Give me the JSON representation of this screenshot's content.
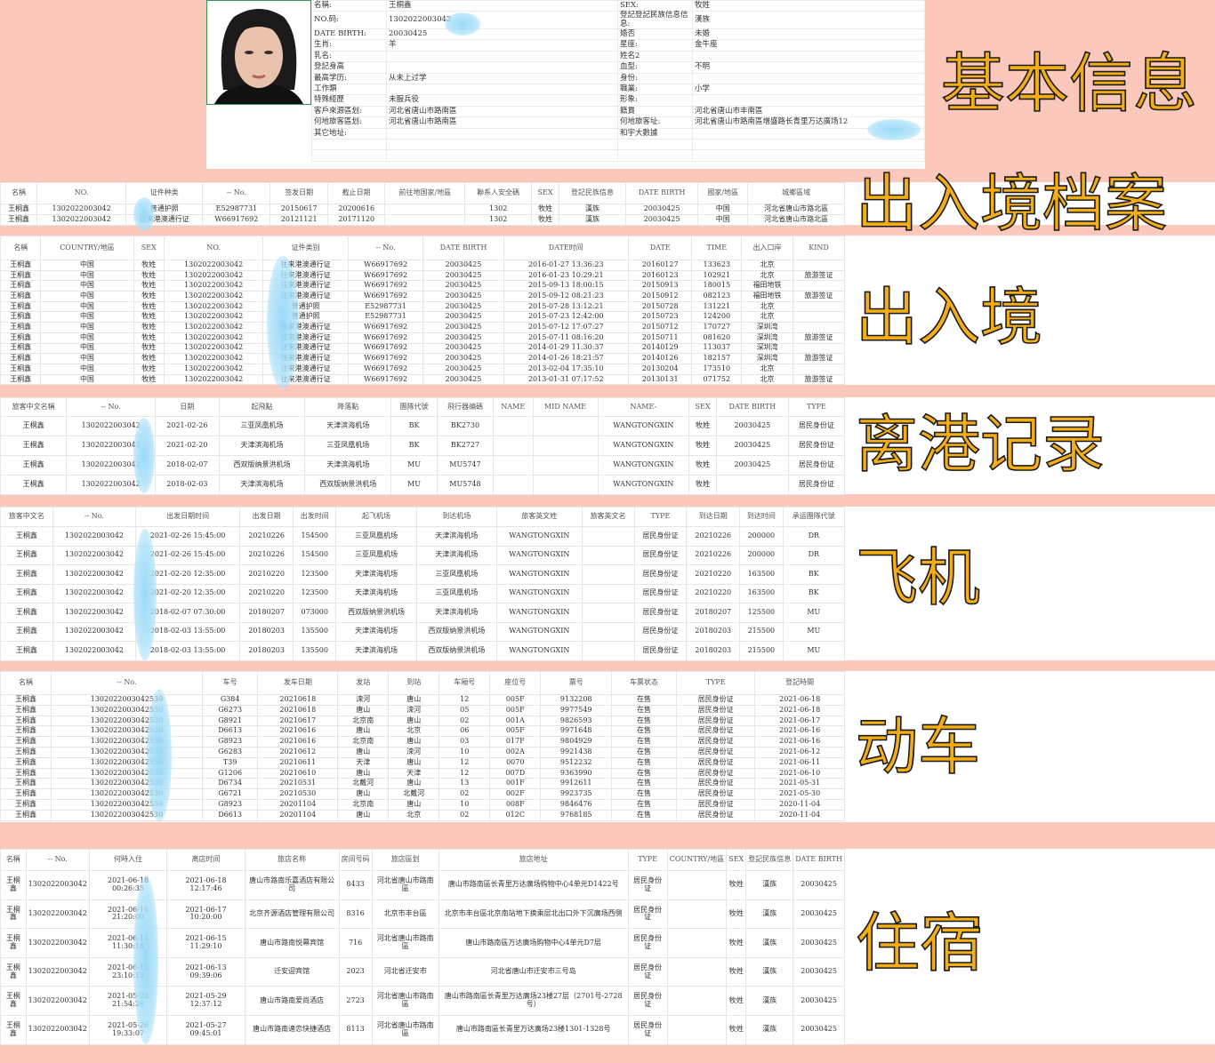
{
  "labels": {
    "basic": "基本信息",
    "archive": "出入境档案",
    "entry": "出入境",
    "depart": "离港记录",
    "flight": "飞机",
    "train": "动车",
    "hotel": "住宿"
  },
  "colors": {
    "background": "#fcc8bb",
    "label_fill": "#f3ae17",
    "label_outline": "#1a1a1a",
    "redaction": "#9fd8f3"
  },
  "basic": {
    "photo_icon": "person-photo",
    "rows": [
      [
        "名稱:",
        "王桐鑫",
        "SEX:",
        "牧姓"
      ],
      [
        "NO.码:",
        "1302022003042",
        "登記登記民族信息信息:",
        "漢族"
      ],
      [
        "DATE BIRTH:",
        "20030425",
        "婚否",
        "未婚"
      ],
      [
        "生肖:",
        "羊",
        "星座:",
        "金牛座"
      ],
      [
        "乳名:",
        "",
        "姓名2",
        ""
      ],
      [
        "登記身高",
        "",
        "血型:",
        "不明"
      ],
      [
        "最高学历:",
        "从未上过学",
        "身份:",
        ""
      ],
      [
        "工作類",
        "",
        "職業:",
        "小学"
      ],
      [
        "特殊經歷",
        "未服兵役",
        "形象:",
        ""
      ],
      [
        "客戶來源區划:",
        "河北省唐山市路南區",
        "籍貫",
        "河北省唐山市丰南區"
      ],
      [
        "何地旅客區划:",
        "河北省唐山市路南區",
        "何地旅客址:",
        "河北省唐山市路南區增盛路长青里万达廣场12"
      ],
      [
        "其它地址:",
        "",
        "和宇大數據",
        ""
      ],
      [
        "",
        "",
        "",
        ""
      ],
      [
        "",
        "",
        "",
        ""
      ]
    ]
  },
  "tables": {
    "archive": {
      "headers": [
        "名稱",
        "NO.",
        "证件种类",
        "-- No.",
        "签发日期",
        "截止日期",
        "前往地国家/地區",
        "聯系人安全碼",
        "SEX",
        "登記民族信息",
        "DATE BIRTH",
        "國家/地區",
        "城鄉區域"
      ],
      "rows": [
        [
          "王桐鑫",
          "1302022003042",
          "普通护照",
          "E52987731",
          "20150617",
          "20200616",
          "",
          "1302",
          "牧姓",
          "漢族",
          "20030425",
          "中国",
          "河北省唐山市路北區"
        ],
        [
          "王桐鑫",
          "1302022003042",
          "往来港澳通行证",
          "W66917692",
          "20121121",
          "20171120",
          "",
          "1302",
          "牧姓",
          "漢族",
          "20030425",
          "中国",
          "河北省唐山市路北區"
        ]
      ]
    },
    "entry": {
      "headers": [
        "名稱",
        "COUNTRY/地區",
        "SEX",
        "NO.",
        "证件类别",
        "-- No.",
        "DATE BIRTH",
        "DATE时间",
        "DATE",
        "TIME",
        "出入口岸",
        "KIND"
      ],
      "rows": [
        [
          "王桐鑫",
          "中国",
          "牧姓",
          "1302022003042",
          "往来港澳通行证",
          "W66917692",
          "20030425",
          "2016-01-27 13:36:23",
          "20160127",
          "133623",
          "北京",
          ""
        ],
        [
          "王桐鑫",
          "中国",
          "牧姓",
          "1302022003042",
          "往来港澳通行证",
          "W66917692",
          "20030425",
          "2016-01-23 10:29:21",
          "20160123",
          "102921",
          "北京",
          "旅游签证"
        ],
        [
          "王桐鑫",
          "中国",
          "牧姓",
          "1302022003042",
          "往来港澳通行证",
          "W66917692",
          "20030425",
          "2015-09-13 18:00:15",
          "20150913",
          "180015",
          "福田地铁",
          ""
        ],
        [
          "王桐鑫",
          "中国",
          "牧姓",
          "1302022003042",
          "往来港澳通行证",
          "W66917692",
          "20030425",
          "2015-09-12 08:21:23",
          "20150912",
          "082123",
          "福田地铁",
          "旅游签证"
        ],
        [
          "王桐鑫",
          "中国",
          "牧姓",
          "1302022003042",
          "普通护照",
          "E52987731",
          "20030425",
          "2015-07-28 13:12:21",
          "20150728",
          "131221",
          "北京",
          ""
        ],
        [
          "王桐鑫",
          "中国",
          "牧姓",
          "1302022003042",
          "普通护照",
          "E52987731",
          "20030425",
          "2015-07-23 12:42:00",
          "20150723",
          "124200",
          "北京",
          ""
        ],
        [
          "王桐鑫",
          "中国",
          "牧姓",
          "1302022003042",
          "往来港澳通行证",
          "W66917692",
          "20030425",
          "2015-07-12 17:07:27",
          "20150712",
          "170727",
          "深圳湾",
          ""
        ],
        [
          "王桐鑫",
          "中国",
          "牧姓",
          "1302022003042",
          "往来港澳通行证",
          "W66917692",
          "20030425",
          "2015-07-11 08:16:20",
          "20150711",
          "081620",
          "深圳湾",
          "旅游签证"
        ],
        [
          "王桐鑫",
          "中国",
          "牧姓",
          "1302022003042",
          "往来港澳通行证",
          "W66917692",
          "20030425",
          "2014-01-29 11:30:37",
          "20140129",
          "113037",
          "深圳湾",
          ""
        ],
        [
          "王桐鑫",
          "中国",
          "牧姓",
          "1302022003042",
          "往来港澳通行证",
          "W66917692",
          "20030425",
          "2014-01-26 18:21:57",
          "20140126",
          "182157",
          "深圳湾",
          "旅游签证"
        ],
        [
          "王桐鑫",
          "中国",
          "牧姓",
          "1302022003042",
          "往来港澳通行证",
          "W66917692",
          "20030425",
          "2013-02-04 17:35:10",
          "20130204",
          "173510",
          "北京",
          ""
        ],
        [
          "王桐鑫",
          "中国",
          "牧姓",
          "1302022003042",
          "往来港澳通行证",
          "W66917692",
          "20030425",
          "2013-01-31 07:17:52",
          "20130131",
          "071752",
          "北京",
          "旅游签证"
        ]
      ]
    },
    "depart": {
      "headers": [
        "旅客中文名稱",
        "-- No.",
        "日期",
        "起飛點",
        "降落點",
        "團隊代號",
        "飛行器编碼",
        "NAME",
        "MID NAME",
        "NAME-",
        "SEX",
        "DATE BIRTH",
        "TYPE"
      ],
      "rows": [
        [
          "王桐鑫",
          "1302022003042",
          "2021-02-26",
          "三亚凤凰机场",
          "天津滨海机场",
          "BK",
          "BK2730",
          "",
          "",
          "WANGTONGXIN",
          "牧姓",
          "20030425",
          "居民身份证"
        ],
        [
          "王桐鑫",
          "1302022003042",
          "2021-02-20",
          "天津滨海机场",
          "三亚凤凰机场",
          "BK",
          "BK2727",
          "",
          "",
          "WANGTONGXIN",
          "牧姓",
          "20030425",
          "居民身份证"
        ],
        [
          "王桐鑫",
          "1302022003042",
          "2018-02-07",
          "西双版纳景洪机场",
          "天津滨海机场",
          "MU",
          "MU5747",
          "",
          "",
          "WANGTONGXIN",
          "牧姓",
          "20030425",
          "居民身份证"
        ],
        [
          "王桐鑫",
          "1302022003042",
          "2018-02-03",
          "天津滨海机场",
          "西双版纳景洪机场",
          "MU",
          "MU5748",
          "",
          "",
          "WANGTONGXIN",
          "牧姓",
          "",
          "居民身份证"
        ]
      ]
    },
    "flight": {
      "headers": [
        "旅客中文名",
        "-- No.",
        "出发日期时间",
        "出发日期",
        "出发时间",
        "起飞机场",
        "到达机场",
        "旅客英文姓",
        "旅客英文名",
        "TYPE",
        "到达日期",
        "到达时间",
        "承运團隊代號"
      ],
      "rows": [
        [
          "王桐鑫",
          "1302022003042",
          "2021-02-26 15:45:00",
          "20210226",
          "154500",
          "三亚凤凰机场",
          "天津滨海机场",
          "WANGTONGXIN",
          "",
          "居民身份证",
          "20210226",
          "200000",
          "DR"
        ],
        [
          "王桐鑫",
          "1302022003042",
          "2021-02-26 15:45:00",
          "20210226",
          "154500",
          "三亚凤凰机场",
          "天津滨海机场",
          "WANGTONGXIN",
          "",
          "居民身份证",
          "20210226",
          "200000",
          "DR"
        ],
        [
          "王桐鑫",
          "1302022003042",
          "2021-02-20 12:35:00",
          "20210220",
          "123500",
          "天津滨海机场",
          "三亚凤凰机场",
          "WANGTONGXIN",
          "",
          "居民身份证",
          "20210220",
          "163500",
          "BK"
        ],
        [
          "王桐鑫",
          "1302022003042",
          "2021-02-20 12:35:00",
          "20210220",
          "123500",
          "天津滨海机场",
          "三亚凤凰机场",
          "WANGTONGXIN",
          "",
          "居民身份证",
          "20210220",
          "163500",
          "BK"
        ],
        [
          "王桐鑫",
          "1302022003042",
          "2018-02-07 07:30:00",
          "20180207",
          "073000",
          "西双版纳景洪机场",
          "天津滨海机场",
          "WANGTONGXIN",
          "",
          "居民身份证",
          "20180207",
          "125500",
          "MU"
        ],
        [
          "王桐鑫",
          "1302022003042",
          "2018-02-03 13:55:00",
          "20180203",
          "135500",
          "天津滨海机场",
          "西双版纳景洪机场",
          "WANGTONGXIN",
          "",
          "居民身份证",
          "20180203",
          "215500",
          "MU"
        ],
        [
          "王桐鑫",
          "1302022003042",
          "2018-02-03 13:55:00",
          "20180203",
          "135500",
          "天津滨海机场",
          "西双版纳景洪机场",
          "WANGTONGXIN",
          "",
          "居民身份证",
          "20180203",
          "215500",
          "MU"
        ]
      ]
    },
    "train": {
      "headers": [
        "名稱",
        "-- No.",
        "车号",
        "发车日期",
        "发站",
        "到站",
        "车厢号",
        "座位号",
        "票号",
        "车票状态",
        "TYPE",
        "登記時間"
      ],
      "rows": [
        [
          "王桐鑫",
          "1302022003042530",
          "G384",
          "20210618",
          "滦河",
          "唐山",
          "12",
          "005F",
          "9132208",
          "在售",
          "居民身份证",
          "2021-06-18"
        ],
        [
          "王桐鑫",
          "1302022003042530",
          "G6273",
          "20210618",
          "唐山",
          "滦河",
          "05",
          "005F",
          "9977549",
          "在售",
          "居民身份证",
          "2021-06-18"
        ],
        [
          "王桐鑫",
          "1302022003042530",
          "G8921",
          "20210617",
          "北京南",
          "唐山",
          "02",
          "001A",
          "9826593",
          "在售",
          "居民身份证",
          "2021-06-17"
        ],
        [
          "王桐鑫",
          "1302022003042530",
          "D6613",
          "20210616",
          "唐山",
          "北京",
          "06",
          "005F",
          "9971648",
          "在售",
          "居民身份证",
          "2021-06-16"
        ],
        [
          "王桐鑫",
          "1302022003042530",
          "G8923",
          "20210616",
          "北京南",
          "唐山",
          "03",
          "017F",
          "9804929",
          "在售",
          "居民身份证",
          "2021-06-16"
        ],
        [
          "王桐鑫",
          "1302022003042530",
          "G6283",
          "20210612",
          "唐山",
          "滦河",
          "10",
          "002A",
          "9921438",
          "在售",
          "居民身份证",
          "2021-06-12"
        ],
        [
          "王桐鑫",
          "1302022003042530",
          "T39",
          "20210611",
          "天津",
          "唐山",
          "12",
          "0070",
          "9512232",
          "在售",
          "居民身份证",
          "2021-06-11"
        ],
        [
          "王桐鑫",
          "1302022003042530",
          "G1206",
          "20210610",
          "唐山",
          "天津",
          "12",
          "007D",
          "9363990",
          "在售",
          "居民身份证",
          "2021-06-10"
        ],
        [
          "王桐鑫",
          "1302022003042530",
          "D6734",
          "20210531",
          "北戴河",
          "唐山",
          "13",
          "001F",
          "9912611",
          "在售",
          "居民身份证",
          "2021-05-31"
        ],
        [
          "王桐鑫",
          "1302022003042530",
          "G6721",
          "20210530",
          "唐山",
          "北戴河",
          "02",
          "002F",
          "9923735",
          "在售",
          "居民身份证",
          "2021-05-30"
        ],
        [
          "王桐鑫",
          "1302022003042530",
          "G8923",
          "20201104",
          "北京南",
          "唐山",
          "10",
          "008F",
          "9846476",
          "在售",
          "居民身份证",
          "2020-11-04"
        ],
        [
          "王桐鑫",
          "1302022003042530",
          "D6613",
          "20201104",
          "唐山",
          "北京",
          "02",
          "012C",
          "9768185",
          "在售",
          "居民身份证",
          "2020-11-04"
        ]
      ]
    },
    "hotel": {
      "headers": [
        "名稱",
        "-- No.",
        "何時入住",
        "离店时间",
        "旅店名称",
        "房间号码",
        "旅店區划",
        "旅店地址",
        "TYPE",
        "COUNTRY/地區",
        "SEX",
        "登記民族信息",
        "DATE BIRTH"
      ],
      "rows": [
        [
          "王桐鑫",
          "1302022003042",
          "2021-06-18 00:26:35",
          "2021-06-18 12:17:46",
          "唐山市路南乐嘉酒店有限公司",
          "8433",
          "河北省唐山市路南區",
          "唐山市路南區长青里万达廣场购物中心4单元D1422号",
          "居民身份证",
          "",
          "牧姓",
          "漢族",
          "20030425"
        ],
        [
          "王桐鑫",
          "1302022003042",
          "2021-06-16 21:20:00",
          "2021-06-17 10:20:00",
          "北京齐源酒店管理有限公司",
          "8316",
          "北京市丰台區",
          "北京市丰台區北京南站地下换乘层北出口外下沉廣场西侧",
          "居民身份证",
          "",
          "牧姓",
          "漢族",
          "20030425"
        ],
        [
          "王桐鑫",
          "1302022003042",
          "2021-06-14 11:30:18",
          "2021-06-15 11:29:10",
          "唐山市路南悦幕宾馆",
          "716",
          "河北省唐山市路南區",
          "唐山市路南區万达廣场购物中心4单元D7层",
          "居民身份证",
          "",
          "牧姓",
          "漢族",
          "20030425"
        ],
        [
          "王桐鑫",
          "1302022003042",
          "2021-06-12 23:10:13",
          "2021-06-13 09:39:06",
          "迁安迎宾馆",
          "2023",
          "河北省迁安市",
          "河北省唐山市迁安市三号岛",
          "居民身份证",
          "",
          "牧姓",
          "漢族",
          "20030425"
        ],
        [
          "王桐鑫",
          "1302022003042",
          "2021-05-28 21:54:26",
          "2021-05-29 12:37:12",
          "唐山市路南爱尚酒店",
          "2723",
          "河北省唐山市路南區",
          "唐山市路南區长青里万达廣场23楼27层（2701号-2728号）",
          "居民身份证",
          "",
          "牧姓",
          "漢族",
          "20030425"
        ],
        [
          "王桐鑫",
          "1302022003042",
          "2021-05-26 19:33:07",
          "2021-05-27 09:45:01",
          "唐山市路南速恋快捷酒店",
          "8113",
          "河北省唐山市路南區",
          "唐山市路南區长青里万达廣场23楼1301-1328号",
          "居民身份证",
          "",
          "牧姓",
          "漢族",
          "20030425"
        ]
      ]
    }
  }
}
